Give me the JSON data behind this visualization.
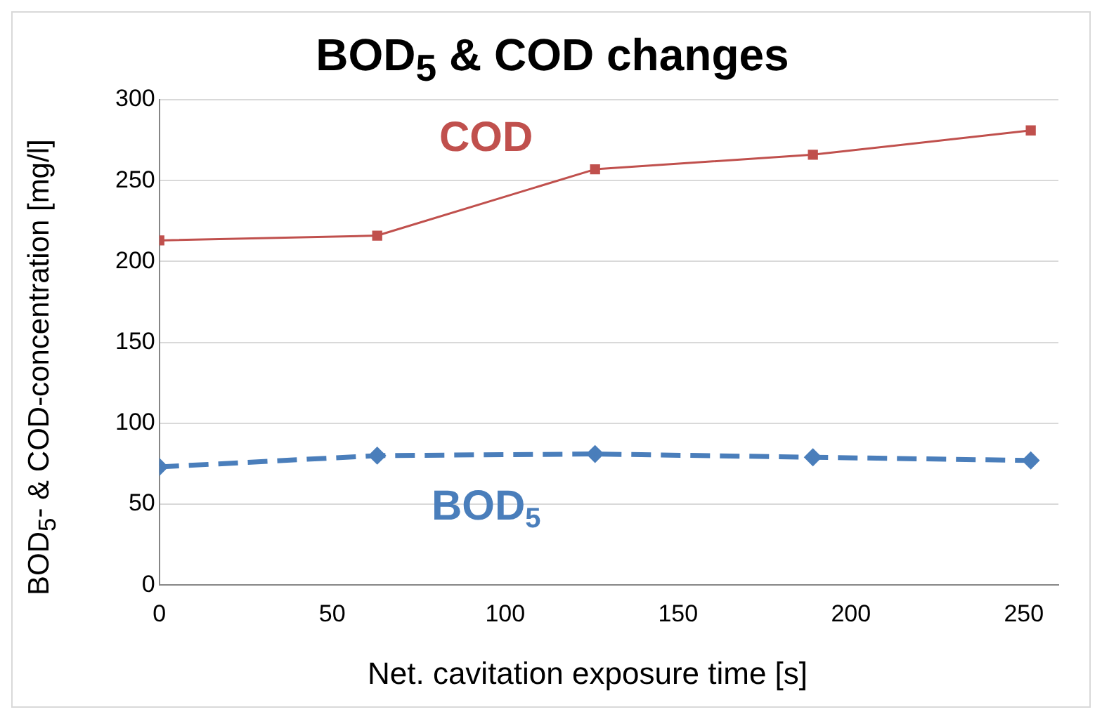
{
  "chart_data": {
    "type": "line",
    "title": "BOD$_{5}$ & COD changes",
    "xlabel": "Net. cavitation exposure time [s]",
    "ylabel": "BOD$_{5}$- & COD-concentration [mg/l]",
    "x": [
      0,
      63,
      126,
      189,
      252
    ],
    "series": [
      {
        "name": "COD",
        "color": "#c0504d",
        "marker": "square",
        "line_style": "solid",
        "values": [
          213,
          216,
          257,
          266,
          281
        ]
      },
      {
        "name": "BOD$_{5}$",
        "color": "#4a7ebb",
        "marker": "diamond",
        "line_style": "dashed",
        "values": [
          73,
          80,
          81,
          79,
          77
        ]
      }
    ],
    "xlim": [
      0,
      260
    ],
    "xticks": [
      0,
      50,
      100,
      150,
      200,
      250
    ],
    "ylim": [
      0,
      300
    ],
    "yticks": [
      0,
      50,
      100,
      150,
      200,
      250,
      300
    ],
    "grid": "y"
  }
}
